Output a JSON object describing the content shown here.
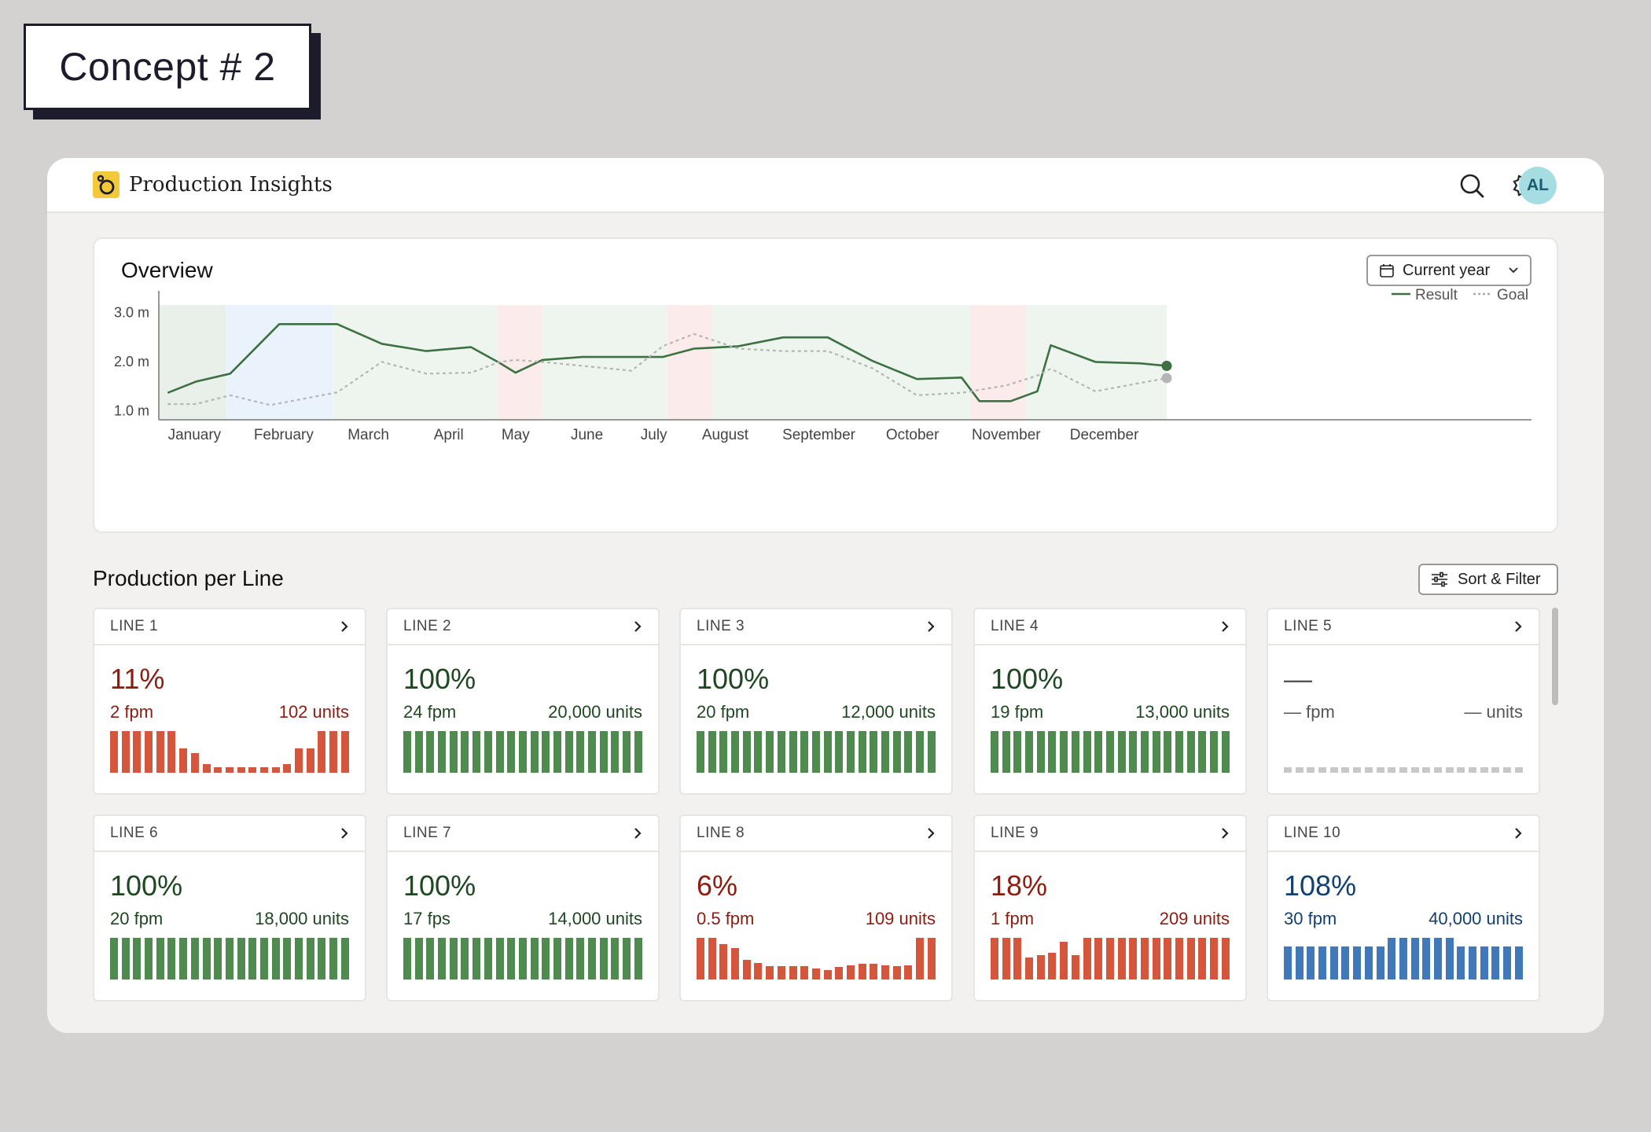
{
  "concept_label": "Concept # 2",
  "app": {
    "title": "Production Insights",
    "avatar_initials": "AL",
    "icons": [
      "search-icon",
      "gear-icon"
    ]
  },
  "overview": {
    "title": "Overview",
    "period_label": "Current year",
    "legend": {
      "result": "Result",
      "goal": "Goal"
    }
  },
  "chart_data": {
    "type": "line",
    "x": [
      "January",
      "February",
      "March",
      "April",
      "May",
      "June",
      "July",
      "August",
      "September",
      "October",
      "November",
      "December"
    ],
    "y_ticks": [
      "3.0 m",
      "2.0 m",
      "1.0 m"
    ],
    "ylim": [
      0.8,
      3.3
    ],
    "series": [
      {
        "name": "Result",
        "color": "#3d7142",
        "style": "solid",
        "points": [
          [
            0.1,
            1.35
          ],
          [
            0.42,
            1.58
          ],
          [
            0.8,
            1.74
          ],
          [
            1.35,
            2.75
          ],
          [
            2.0,
            2.75
          ],
          [
            2.5,
            2.35
          ],
          [
            3.0,
            2.2
          ],
          [
            3.5,
            2.28
          ],
          [
            3.82,
            1.96
          ],
          [
            4.0,
            1.76
          ],
          [
            4.3,
            2.02
          ],
          [
            4.75,
            2.08
          ],
          [
            5.3,
            2.08
          ],
          [
            5.65,
            2.08
          ],
          [
            6.0,
            2.25
          ],
          [
            6.5,
            2.3
          ],
          [
            7.0,
            2.48
          ],
          [
            7.5,
            2.48
          ],
          [
            8.0,
            2.0
          ],
          [
            8.5,
            1.63
          ],
          [
            9.0,
            1.66
          ],
          [
            9.2,
            1.18
          ],
          [
            9.55,
            1.18
          ],
          [
            9.85,
            1.38
          ],
          [
            10.0,
            2.32
          ],
          [
            10.5,
            1.98
          ],
          [
            11.0,
            1.95
          ],
          [
            11.3,
            1.9
          ]
        ]
      },
      {
        "name": "Goal",
        "color": "#b5b5b5",
        "style": "dotted",
        "points": [
          [
            0.1,
            1.12
          ],
          [
            0.42,
            1.12
          ],
          [
            0.8,
            1.3
          ],
          [
            1.25,
            1.1
          ],
          [
            2.0,
            1.36
          ],
          [
            2.5,
            1.98
          ],
          [
            3.0,
            1.74
          ],
          [
            3.5,
            1.76
          ],
          [
            3.82,
            1.98
          ],
          [
            4.0,
            2.02
          ],
          [
            4.3,
            1.98
          ],
          [
            4.75,
            1.9
          ],
          [
            5.3,
            1.8
          ],
          [
            5.65,
            2.3
          ],
          [
            6.0,
            2.55
          ],
          [
            6.5,
            2.25
          ],
          [
            7.0,
            2.2
          ],
          [
            7.5,
            2.2
          ],
          [
            8.0,
            1.85
          ],
          [
            8.5,
            1.3
          ],
          [
            9.0,
            1.35
          ],
          [
            9.5,
            1.5
          ],
          [
            9.85,
            1.7
          ],
          [
            10.0,
            1.84
          ],
          [
            10.5,
            1.38
          ],
          [
            11.0,
            1.55
          ],
          [
            11.3,
            1.65
          ]
        ]
      }
    ],
    "bands": [
      {
        "from": 0,
        "to": 0.75,
        "color": "#e9efe9"
      },
      {
        "from": 0.75,
        "to": 1.95,
        "color": "#eaf3fb"
      },
      {
        "from": 1.95,
        "to": 3.8,
        "color": "#eef5ee"
      },
      {
        "from": 3.8,
        "to": 4.3,
        "color": "#fbeceb"
      },
      {
        "from": 4.3,
        "to": 5.7,
        "color": "#eef5ee"
      },
      {
        "from": 5.7,
        "to": 6.2,
        "color": "#fbeceb"
      },
      {
        "from": 6.2,
        "to": 9.1,
        "color": "#eef5ee"
      },
      {
        "from": 9.1,
        "to": 9.72,
        "color": "#fbeceb"
      },
      {
        "from": 9.72,
        "to": 11.3,
        "color": "#eef5ee"
      }
    ],
    "grid": false,
    "legend_position": "top-right"
  },
  "production": {
    "title": "Production per Line",
    "sort_label": "Sort & Filter",
    "lines": [
      {
        "name": "LINE 1",
        "pct": "11%",
        "fpm": "2 fpm",
        "units": "102 units",
        "status": "red",
        "bars": [
          0.95,
          0.95,
          0.95,
          0.95,
          0.95,
          0.95,
          0.55,
          0.45,
          0.2,
          0.12,
          0.12,
          0.12,
          0.12,
          0.12,
          0.12,
          0.2,
          0.55,
          0.55,
          0.95,
          0.95,
          0.95
        ]
      },
      {
        "name": "LINE 2",
        "pct": "100%",
        "fpm": "24 fpm",
        "units": "20,000 units",
        "status": "green",
        "bars": [
          0.95,
          0.95,
          0.95,
          0.95,
          0.95,
          0.95,
          0.95,
          0.95,
          0.95,
          0.95,
          0.95,
          0.95,
          0.95,
          0.95,
          0.95,
          0.95,
          0.95,
          0.95,
          0.95,
          0.95,
          0.95
        ]
      },
      {
        "name": "LINE 3",
        "pct": "100%",
        "fpm": "20 fpm",
        "units": "12,000 units",
        "status": "green",
        "bars": [
          0.95,
          0.95,
          0.95,
          0.95,
          0.95,
          0.95,
          0.95,
          0.95,
          0.95,
          0.95,
          0.95,
          0.95,
          0.95,
          0.95,
          0.95,
          0.95,
          0.95,
          0.95,
          0.95,
          0.95,
          0.95
        ]
      },
      {
        "name": "LINE 4",
        "pct": "100%",
        "fpm": "19 fpm",
        "units": "13,000 units",
        "status": "green",
        "bars": [
          0.95,
          0.95,
          0.95,
          0.95,
          0.95,
          0.95,
          0.95,
          0.95,
          0.95,
          0.95,
          0.95,
          0.95,
          0.95,
          0.95,
          0.95,
          0.95,
          0.95,
          0.95,
          0.95,
          0.95,
          0.95
        ]
      },
      {
        "name": "LINE 5",
        "pct": "—",
        "fpm": "— fpm",
        "units": "— units",
        "status": "gray",
        "bars": [
          0.1,
          0.1,
          0.1,
          0.1,
          0.1,
          0.1,
          0.1,
          0.1,
          0.1,
          0.1,
          0.1,
          0.1,
          0.1,
          0.1,
          0.1,
          0.1,
          0.1,
          0.1,
          0.1,
          0.1,
          0.1
        ]
      },
      {
        "name": "LINE 6",
        "pct": "100%",
        "fpm": "20 fpm",
        "units": "18,000 units",
        "status": "green",
        "bars": [
          0.95,
          0.95,
          0.95,
          0.95,
          0.95,
          0.95,
          0.95,
          0.95,
          0.95,
          0.95,
          0.95,
          0.95,
          0.95,
          0.95,
          0.95,
          0.95,
          0.95,
          0.95,
          0.95,
          0.95,
          0.95
        ]
      },
      {
        "name": "LINE 7",
        "pct": "100%",
        "fpm": "17 fps",
        "units": "14,000 units",
        "status": "green",
        "bars": [
          0.95,
          0.95,
          0.95,
          0.95,
          0.95,
          0.95,
          0.95,
          0.95,
          0.95,
          0.95,
          0.95,
          0.95,
          0.95,
          0.95,
          0.95,
          0.95,
          0.95,
          0.95,
          0.95,
          0.95,
          0.95
        ]
      },
      {
        "name": "LINE 8",
        "pct": "6%",
        "fpm": "0.5 fpm",
        "units": "109 units",
        "status": "red",
        "bars": [
          0.95,
          0.95,
          0.8,
          0.72,
          0.45,
          0.38,
          0.3,
          0.3,
          0.3,
          0.3,
          0.25,
          0.22,
          0.28,
          0.32,
          0.35,
          0.35,
          0.32,
          0.3,
          0.32,
          0.95,
          0.95
        ]
      },
      {
        "name": "LINE 9",
        "pct": "18%",
        "fpm": "1 fpm",
        "units": "209 units",
        "status": "red",
        "bars": [
          0.95,
          0.95,
          0.95,
          0.5,
          0.55,
          0.6,
          0.85,
          0.55,
          0.95,
          0.95,
          0.95,
          0.95,
          0.95,
          0.95,
          0.95,
          0.95,
          0.95,
          0.95,
          0.95,
          0.95,
          0.95
        ]
      },
      {
        "name": "LINE 10",
        "pct": "108%",
        "fpm": "30 fpm",
        "units": "40,000 units",
        "status": "blue",
        "bars": [
          0.75,
          0.75,
          0.75,
          0.75,
          0.75,
          0.75,
          0.75,
          0.75,
          0.75,
          0.95,
          0.95,
          0.95,
          0.95,
          0.95,
          0.95,
          0.75,
          0.75,
          0.75,
          0.75,
          0.75,
          0.75
        ]
      }
    ]
  },
  "colors": {
    "red_text": "#8e1b10",
    "red_bar": "#d4573d",
    "green_text": "#1e4722",
    "green_bar": "#4f8a4f",
    "blue_text": "#123f72",
    "blue_bar": "#4179b8",
    "gray_text": "#555555",
    "gray_bar": "#c8c8c8"
  }
}
